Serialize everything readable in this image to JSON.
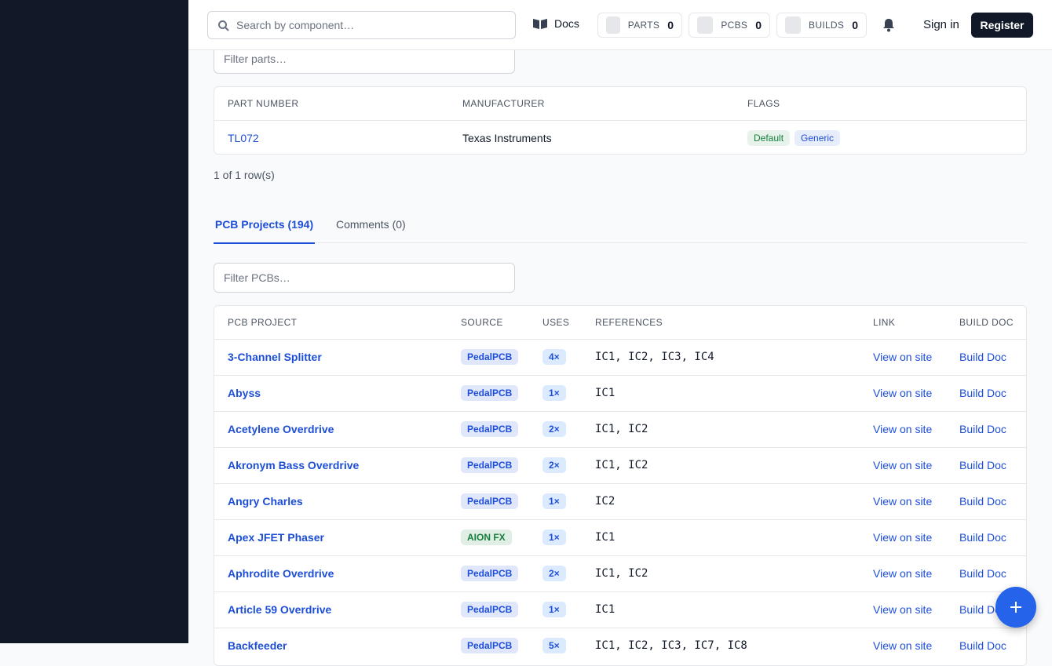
{
  "header": {
    "search_placeholder": "Search by component…",
    "docs": "Docs",
    "counters": [
      {
        "label": "PARTS",
        "count": 0
      },
      {
        "label": "PCBS",
        "count": 0
      },
      {
        "label": "BUILDS",
        "count": 0
      }
    ],
    "sign_in": "Sign in",
    "register": "Register"
  },
  "parts": {
    "filter_placeholder": "Filter parts…",
    "columns": [
      "PART NUMBER",
      "MANUFACTURER",
      "FLAGS"
    ],
    "rows": [
      {
        "part_number": "TL072",
        "manufacturer": "Texas Instruments",
        "flags": [
          {
            "label": "Default",
            "color": "#15803d"
          },
          {
            "label": "Generic",
            "color": "#1d4ed8"
          }
        ]
      }
    ],
    "row_count": "1 of 1 row(s)"
  },
  "tabs": [
    "PCB Projects (194)",
    "Comments (0)"
  ],
  "pcbs": {
    "filter_placeholder": "Filter PCBs…",
    "columns": [
      "PCB PROJECT",
      "SOURCE",
      "USES",
      "REFERENCES",
      "LINK",
      "BUILD DOC"
    ],
    "rows": [
      {
        "project": "3-Channel Splitter",
        "source": "PedalPCB",
        "source_color": "#1d4ed8",
        "uses": "4×",
        "references": "IC1, IC2, IC3, IC4",
        "link": "View on site",
        "build_doc": "Build Doc"
      },
      {
        "project": "Abyss",
        "source": "PedalPCB",
        "source_color": "#1d4ed8",
        "uses": "1×",
        "references": "IC1",
        "link": "View on site",
        "build_doc": "Build Doc"
      },
      {
        "project": "Acetylene Overdrive",
        "source": "PedalPCB",
        "source_color": "#1d4ed8",
        "uses": "2×",
        "references": "IC1, IC2",
        "link": "View on site",
        "build_doc": "Build Doc"
      },
      {
        "project": "Akronym Bass Overdrive",
        "source": "PedalPCB",
        "source_color": "#1d4ed8",
        "uses": "2×",
        "references": "IC1, IC2",
        "link": "View on site",
        "build_doc": "Build Doc"
      },
      {
        "project": "Angry Charles",
        "source": "PedalPCB",
        "source_color": "#1d4ed8",
        "uses": "1×",
        "references": "IC2",
        "link": "View on site",
        "build_doc": "Build Doc"
      },
      {
        "project": "Apex JFET Phaser",
        "source": "AION FX",
        "source_color": "#15803d",
        "uses": "1×",
        "references": "IC1",
        "link": "View on site",
        "build_doc": "Build Doc"
      },
      {
        "project": "Aphrodite Overdrive",
        "source": "PedalPCB",
        "source_color": "#1d4ed8",
        "uses": "2×",
        "references": "IC1, IC2",
        "link": "View on site",
        "build_doc": "Build Doc"
      },
      {
        "project": "Article 59 Overdrive",
        "source": "PedalPCB",
        "source_color": "#1d4ed8",
        "uses": "1×",
        "references": "IC1",
        "link": "View on site",
        "build_doc": "Build Doc"
      },
      {
        "project": "Backfeeder",
        "source": "PedalPCB",
        "source_color": "#1d4ed8",
        "uses": "5×",
        "references": "IC1, IC2, IC3, IC7, IC8",
        "link": "View on site",
        "build_doc": "Build Doc"
      }
    ]
  }
}
